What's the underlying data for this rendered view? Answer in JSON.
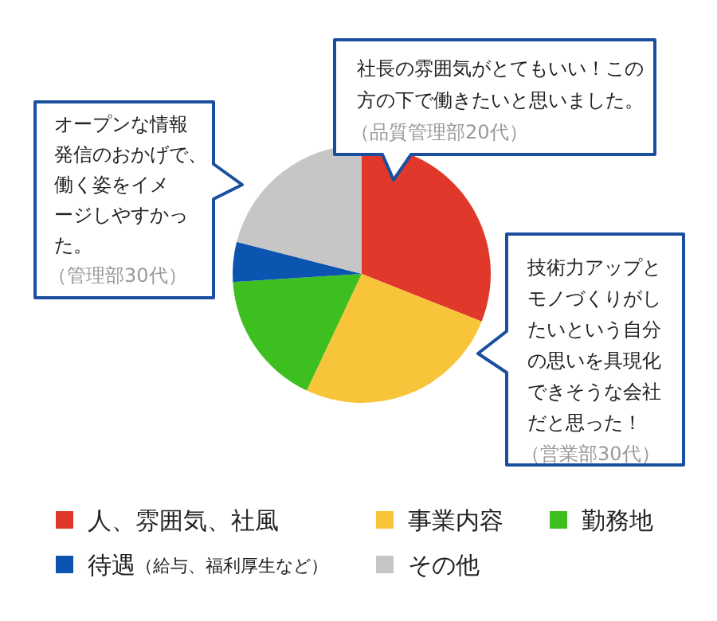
{
  "chart_data": {
    "type": "pie",
    "categories": [
      "人、雰囲気、社風",
      "事業内容",
      "勤務地",
      "待遇（給与、福利厚生など）",
      "その他"
    ],
    "values": [
      31,
      26,
      17,
      5,
      21
    ],
    "colors": [
      "#e0392b",
      "#f8c43a",
      "#3dbf20",
      "#0b55b0",
      "#c6c6c6"
    ],
    "legend": "bottom",
    "annotations": [
      "オープンな情報発信のおかげで、働く姿をイメージしやすかった。",
      "（管理部30代）",
      "社長の雰囲気がとてもいい！この方の下で働きたいと思いました。",
      "（品質管理部20代）",
      "技術力アップとモノづくりがしたいという自分の思いを具現化できそうな会社だと思った！",
      "（営業部30代）"
    ]
  }
}
